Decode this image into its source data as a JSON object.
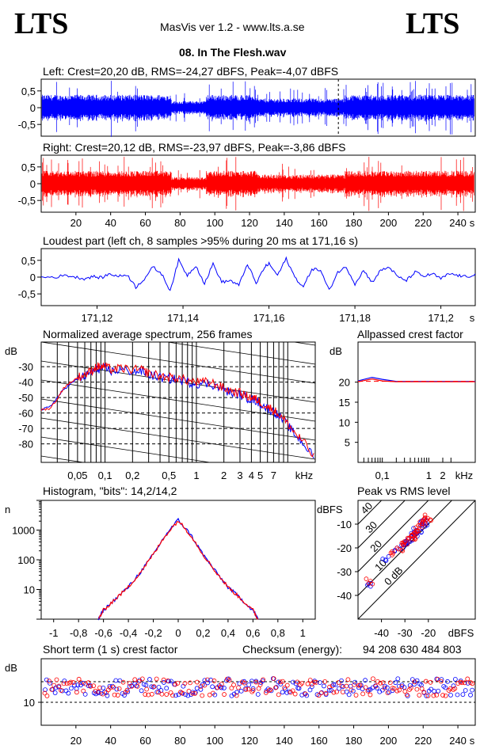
{
  "header": {
    "logo_left": "LTS",
    "logo_right": "LTS",
    "app_title": "MasVis ver 1.2 - www.lts.a.se",
    "file_name": "08. In The Flesh.wav"
  },
  "colors": {
    "left": "#0000ff",
    "right": "#ff0000"
  },
  "chart_data": [
    {
      "id": "left-waveform",
      "type": "line",
      "title": "Left: Crest=20,20 dB, RMS=-24,27 dBFS, Peak=-4,07 dBFS",
      "crest_db": 20.2,
      "rms_dbfs": -24.27,
      "peak_dbfs": -4.07,
      "yticks": [
        "0,5",
        "0",
        "-0,5"
      ],
      "ylim": [
        -0.85,
        0.85
      ],
      "x_range_s": [
        0,
        250
      ],
      "loudest_marker_s": 171.16
    },
    {
      "id": "right-waveform",
      "type": "line",
      "title": "Right: Crest=20,12 dB, RMS=-23,97 dBFS, Peak=-3,86 dBFS",
      "crest_db": 20.12,
      "rms_dbfs": -23.97,
      "peak_dbfs": -3.86,
      "yticks": [
        "0,5",
        "0",
        "-0,5"
      ],
      "ylim": [
        -0.85,
        0.85
      ],
      "xticks": [
        "20",
        "40",
        "60",
        "80",
        "100",
        "120",
        "140",
        "160",
        "180",
        "200",
        "220",
        "240"
      ],
      "xunit": "s",
      "x_range_s": [
        0,
        250
      ]
    },
    {
      "id": "loudest-part",
      "type": "line",
      "title": "Loudest part (left  ch, 8 samples >95% during 20 ms at 171,16 s)",
      "yticks": [
        "0,5",
        "0",
        "-0,5"
      ],
      "ylim": [
        -0.85,
        0.85
      ],
      "xticks": [
        "171,12",
        "171,14",
        "171,16",
        "171,18",
        "171,2"
      ],
      "xunit": "s",
      "xlim": [
        171.107,
        171.208
      ],
      "x": [
        171.107,
        171.11,
        171.113,
        171.115,
        171.117,
        171.119,
        171.121,
        171.123,
        171.125,
        171.127,
        171.129,
        171.131,
        171.133,
        171.135,
        171.137,
        171.139,
        171.141,
        171.143,
        171.145,
        171.147,
        171.149,
        171.151,
        171.153,
        171.155,
        171.157,
        171.159,
        171.16,
        171.162,
        171.164,
        171.166,
        171.168,
        171.17,
        171.172,
        171.174,
        171.176,
        171.178,
        171.18,
        171.182,
        171.184,
        171.186,
        171.188,
        171.19,
        171.192,
        171.194,
        171.196,
        171.198,
        171.2,
        171.202,
        171.204,
        171.206,
        171.208
      ],
      "y": [
        0.0,
        0.0,
        0.05,
        0.0,
        -0.05,
        0.02,
        -0.02,
        0.1,
        0.02,
        0.08,
        -0.3,
        -0.05,
        0.3,
        0.1,
        -0.4,
        0.5,
        0.05,
        0.35,
        -0.2,
        0.4,
        -0.15,
        -0.1,
        -0.25,
        0.4,
        -0.2,
        0.3,
        0.4,
        0.05,
        0.55,
        0.0,
        -0.3,
        0.25,
        0.2,
        -0.4,
        0.15,
        0.3,
        -0.2,
        0.2,
        -0.15,
        0.2,
        0.3,
        0.0,
        -0.1,
        0.15,
        0.02,
        0.1,
        -0.05,
        0.1,
        0.05,
        0.0,
        0.1
      ]
    },
    {
      "id": "normalized-spectrum",
      "type": "line",
      "title": "Normalized average spectrum, 256 frames",
      "ylabel": "dB",
      "yticks": [
        -30,
        -40,
        -50,
        -60,
        -70,
        -80
      ],
      "ylim": [
        -92,
        -14
      ],
      "xticks": [
        "0,05",
        "0,1",
        "0,2",
        "0,5",
        "1",
        "2",
        "3",
        "4",
        "5",
        "7"
      ],
      "xunit": "kHz",
      "x_khz": [
        0.02,
        0.025,
        0.03,
        0.035,
        0.04,
        0.05,
        0.06,
        0.07,
        0.08,
        0.09,
        0.1,
        0.12,
        0.15,
        0.2,
        0.25,
        0.3,
        0.4,
        0.5,
        0.6,
        0.8,
        1,
        1.3,
        1.6,
        2,
        2.5,
        3,
        3.5,
        4,
        4.5,
        5,
        6,
        7,
        8,
        10,
        12,
        15,
        20
      ],
      "series": [
        {
          "name": "",
          "color": "#0000ff",
          "values": [
            -58,
            -56,
            -50,
            -45,
            -42,
            -38,
            -36,
            -34,
            -32,
            -31,
            -31,
            -33,
            -32,
            -33,
            -33,
            -35,
            -37,
            -38,
            -38,
            -40,
            -41,
            -41,
            -42,
            -45,
            -47,
            -48,
            -50,
            -51,
            -52,
            -54,
            -57,
            -59,
            -62,
            -68,
            -74,
            -80,
            -90
          ]
        },
        {
          "name": "",
          "color": "#ff0000",
          "values": [
            -58,
            -57,
            -51,
            -44,
            -41,
            -37,
            -35,
            -33,
            -30,
            -30,
            -30,
            -32,
            -31,
            -32,
            -32,
            -34,
            -36,
            -37,
            -37,
            -39,
            -40,
            -40,
            -41,
            -44,
            -46,
            -47,
            -49,
            -50,
            -51,
            -53,
            -56,
            -58,
            -61,
            -67,
            -73,
            -79,
            -90
          ]
        }
      ]
    },
    {
      "id": "allpassed-crest",
      "type": "line",
      "title": "Allpassed crest factor",
      "ylabel": "dB",
      "yticks": [
        5,
        10,
        15,
        20
      ],
      "ylim": [
        0,
        30
      ],
      "xticks": [
        "0,1",
        "1",
        "2"
      ],
      "xunit": "kHz",
      "x_khz": [
        0.03,
        0.06,
        0.1,
        0.2,
        0.3,
        0.5,
        1,
        2,
        5,
        10
      ],
      "series": [
        {
          "name": "",
          "color": "#0000ff",
          "values": [
            20.3,
            21.2,
            20.7,
            20.2,
            20.2,
            20.2,
            20.2,
            20.2,
            20.2,
            20.2
          ]
        },
        {
          "name": "",
          "color": "#ff0000",
          "values": [
            20.1,
            20.8,
            20.3,
            20.1,
            20.1,
            20.1,
            20.1,
            20.1,
            20.1,
            20.1
          ]
        }
      ]
    },
    {
      "id": "histogram",
      "type": "line",
      "title": "Histogram, \"bits\": 14,2/14,2",
      "ylabel": "n",
      "yscale": "log",
      "yticks": [
        "1000",
        "100",
        "10"
      ],
      "ylim": [
        1,
        10000
      ],
      "xticks": [
        "-1",
        "-0,8",
        "-0,6",
        "-0,4",
        "-0,2",
        "0",
        "0,2",
        "0,4",
        "0,6",
        "0,8",
        "1"
      ],
      "xlim": [
        -1.1,
        1.1
      ],
      "x": [
        -0.64,
        -0.6,
        -0.5,
        -0.4,
        -0.3,
        -0.2,
        -0.1,
        0,
        0.1,
        0.2,
        0.3,
        0.4,
        0.5,
        0.6,
        0.64
      ],
      "series": [
        {
          "name": "",
          "color": "#0000ff",
          "values": [
            1,
            2,
            5,
            12,
            40,
            150,
            700,
            2200,
            700,
            150,
            40,
            12,
            5,
            2,
            1
          ]
        },
        {
          "name": "",
          "color": "#ff0000",
          "values": [
            1,
            2,
            5,
            12,
            40,
            150,
            680,
            2100,
            680,
            150,
            40,
            12,
            5,
            2,
            1
          ]
        }
      ]
    },
    {
      "id": "peak-vs-rms",
      "type": "scatter",
      "title": "Peak vs RMS level",
      "ylabel": "dBFS",
      "yticks": [
        -10,
        -20,
        -30,
        -40
      ],
      "ylim": [
        -50,
        0
      ],
      "xticks": [
        "-40",
        "-30",
        "-20"
      ],
      "xunit": "dBFS",
      "xlim": [
        -50,
        0
      ],
      "diagonal_labels": [
        "40",
        "30",
        "20",
        "10",
        "0 dB"
      ],
      "series": [
        {
          "name": "",
          "color": "#0000ff",
          "x": [
            -45,
            -38,
            -33,
            -31,
            -30,
            -29,
            -28,
            -27,
            -26,
            -25,
            -24,
            -23,
            -22,
            -21
          ],
          "y": [
            -35,
            -24,
            -21,
            -19,
            -18,
            -17,
            -16,
            -15,
            -14,
            -13,
            -12,
            -11,
            -10,
            -9
          ]
        },
        {
          "name": "",
          "color": "#ff0000",
          "x": [
            -45,
            -36,
            -32,
            -30,
            -29,
            -28,
            -27,
            -26,
            -25,
            -24,
            -23,
            -22,
            -21,
            -20
          ],
          "y": [
            -34,
            -23,
            -20,
            -18,
            -17,
            -16,
            -15,
            -14,
            -13,
            -12,
            -10,
            -9,
            -8,
            -7
          ]
        }
      ]
    },
    {
      "id": "short-term-crest",
      "type": "scatter",
      "title": "Short term (1 s) crest factor",
      "checksum_label": "Checksum (energy):",
      "checksum_value": "94 208 630 484 803",
      "ylabel": "dB",
      "yticks": [
        "10"
      ],
      "xticks": [
        "20",
        "40",
        "60",
        "80",
        "100",
        "120",
        "140",
        "160",
        "180",
        "200",
        "220",
        "240"
      ],
      "xunit": "s",
      "x_range_s": [
        0,
        250
      ]
    }
  ]
}
